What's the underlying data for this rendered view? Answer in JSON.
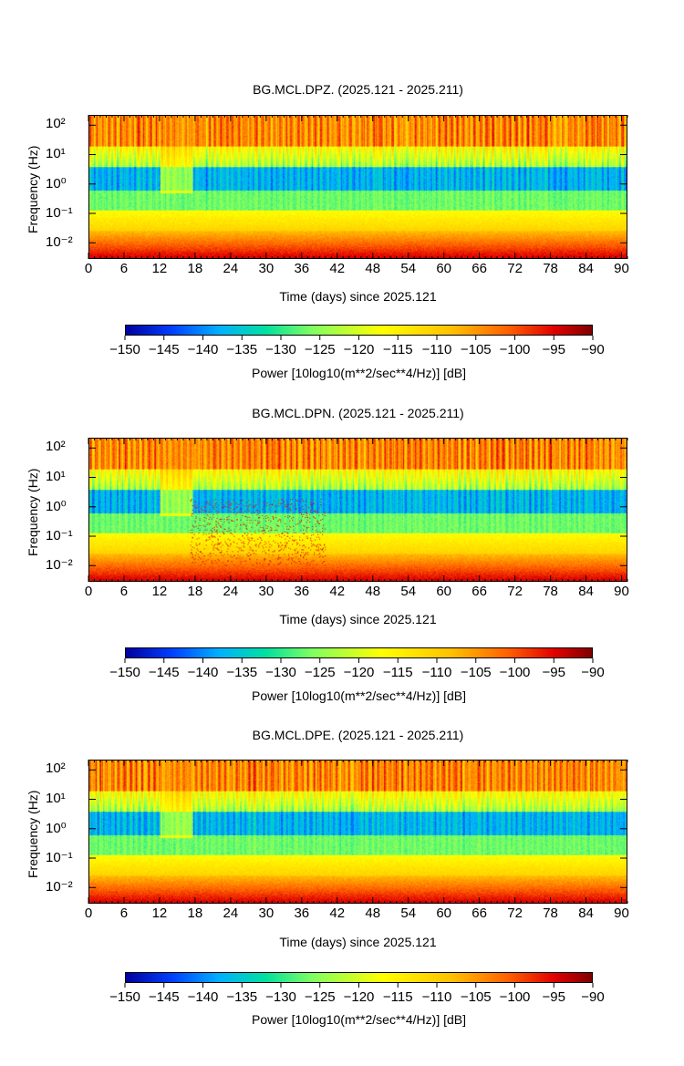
{
  "chart_data": [
    {
      "type": "heatmap",
      "title": "BG.MCL.DPZ. (2025.121 - 2025.211)",
      "xlabel": "Time (days) since 2025.121",
      "ylabel": "Frequency (Hz)",
      "xlim": [
        0,
        91
      ],
      "x_ticks": [
        "0",
        "6",
        "12",
        "18",
        "24",
        "30",
        "36",
        "42",
        "48",
        "54",
        "60",
        "66",
        "72",
        "78",
        "84",
        "90"
      ],
      "y_ticks": [
        "10²",
        "10¹",
        "10⁰",
        "10⁻¹",
        "10⁻²"
      ],
      "y_scale": "log",
      "colorbar": {
        "label": "Power [10log10(m**2/sec**4/Hz)] [dB]",
        "ticks": [
          "−150",
          "−145",
          "−140",
          "−135",
          "−130",
          "−125",
          "−120",
          "−115",
          "−110",
          "−105",
          "−100",
          "−95",
          "−90"
        ],
        "range": [
          -150,
          -90
        ]
      }
    },
    {
      "type": "heatmap",
      "title": "BG.MCL.DPN. (2025.121 - 2025.211)",
      "xlabel": "Time (days) since 2025.121",
      "ylabel": "Frequency (Hz)",
      "xlim": [
        0,
        91
      ],
      "x_ticks": [
        "0",
        "6",
        "12",
        "18",
        "24",
        "30",
        "36",
        "42",
        "48",
        "54",
        "60",
        "66",
        "72",
        "78",
        "84",
        "90"
      ],
      "y_ticks": [
        "10²",
        "10¹",
        "10⁰",
        "10⁻¹",
        "10⁻²"
      ],
      "y_scale": "log",
      "colorbar": {
        "label": "Power [10log10(m**2/sec**4/Hz)] [dB]",
        "ticks": [
          "−150",
          "−145",
          "−140",
          "−135",
          "−130",
          "−125",
          "−120",
          "−115",
          "−110",
          "−105",
          "−100",
          "−95",
          "−90"
        ],
        "range": [
          -150,
          -90
        ]
      }
    },
    {
      "type": "heatmap",
      "title": "BG.MCL.DPE. (2025.121 - 2025.211)",
      "xlabel": "Time (days) since 2025.121",
      "ylabel": "Frequency (Hz)",
      "xlim": [
        0,
        91
      ],
      "x_ticks": [
        "0",
        "6",
        "12",
        "18",
        "24",
        "30",
        "36",
        "42",
        "48",
        "54",
        "60",
        "66",
        "72",
        "78",
        "84",
        "90"
      ],
      "y_ticks": [
        "10²",
        "10¹",
        "10⁰",
        "10⁻¹",
        "10⁻²"
      ],
      "y_scale": "log",
      "colorbar": {
        "label": "Power [10log10(m**2/sec**4/Hz)] [dB]",
        "ticks": [
          "−150",
          "−145",
          "−140",
          "−135",
          "−130",
          "−125",
          "−120",
          "−115",
          "−110",
          "−105",
          "−100",
          "−95",
          "−90"
        ],
        "range": [
          -150,
          -90
        ]
      }
    }
  ]
}
